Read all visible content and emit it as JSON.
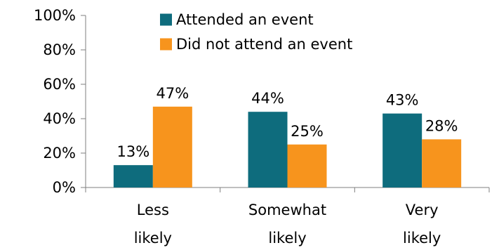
{
  "chart_data": {
    "type": "bar",
    "categories": [
      [
        "Less",
        "likely"
      ],
      [
        "Somewhat",
        "likely"
      ],
      [
        "Very",
        "likely"
      ]
    ],
    "series": [
      {
        "name": "Attended an event",
        "values": [
          13,
          44,
          43
        ],
        "color": "#0E6C7D"
      },
      {
        "name": "Did not attend an event",
        "values": [
          47,
          25,
          28
        ],
        "color": "#F7941D"
      }
    ],
    "ylim": [
      0,
      100
    ],
    "yticks": [
      0,
      20,
      40,
      60,
      80,
      100
    ],
    "tick_format": "percent",
    "data_label_format": "percent",
    "legend_position": "top-center",
    "grid": false,
    "axis_color": "#7F7F7F"
  }
}
